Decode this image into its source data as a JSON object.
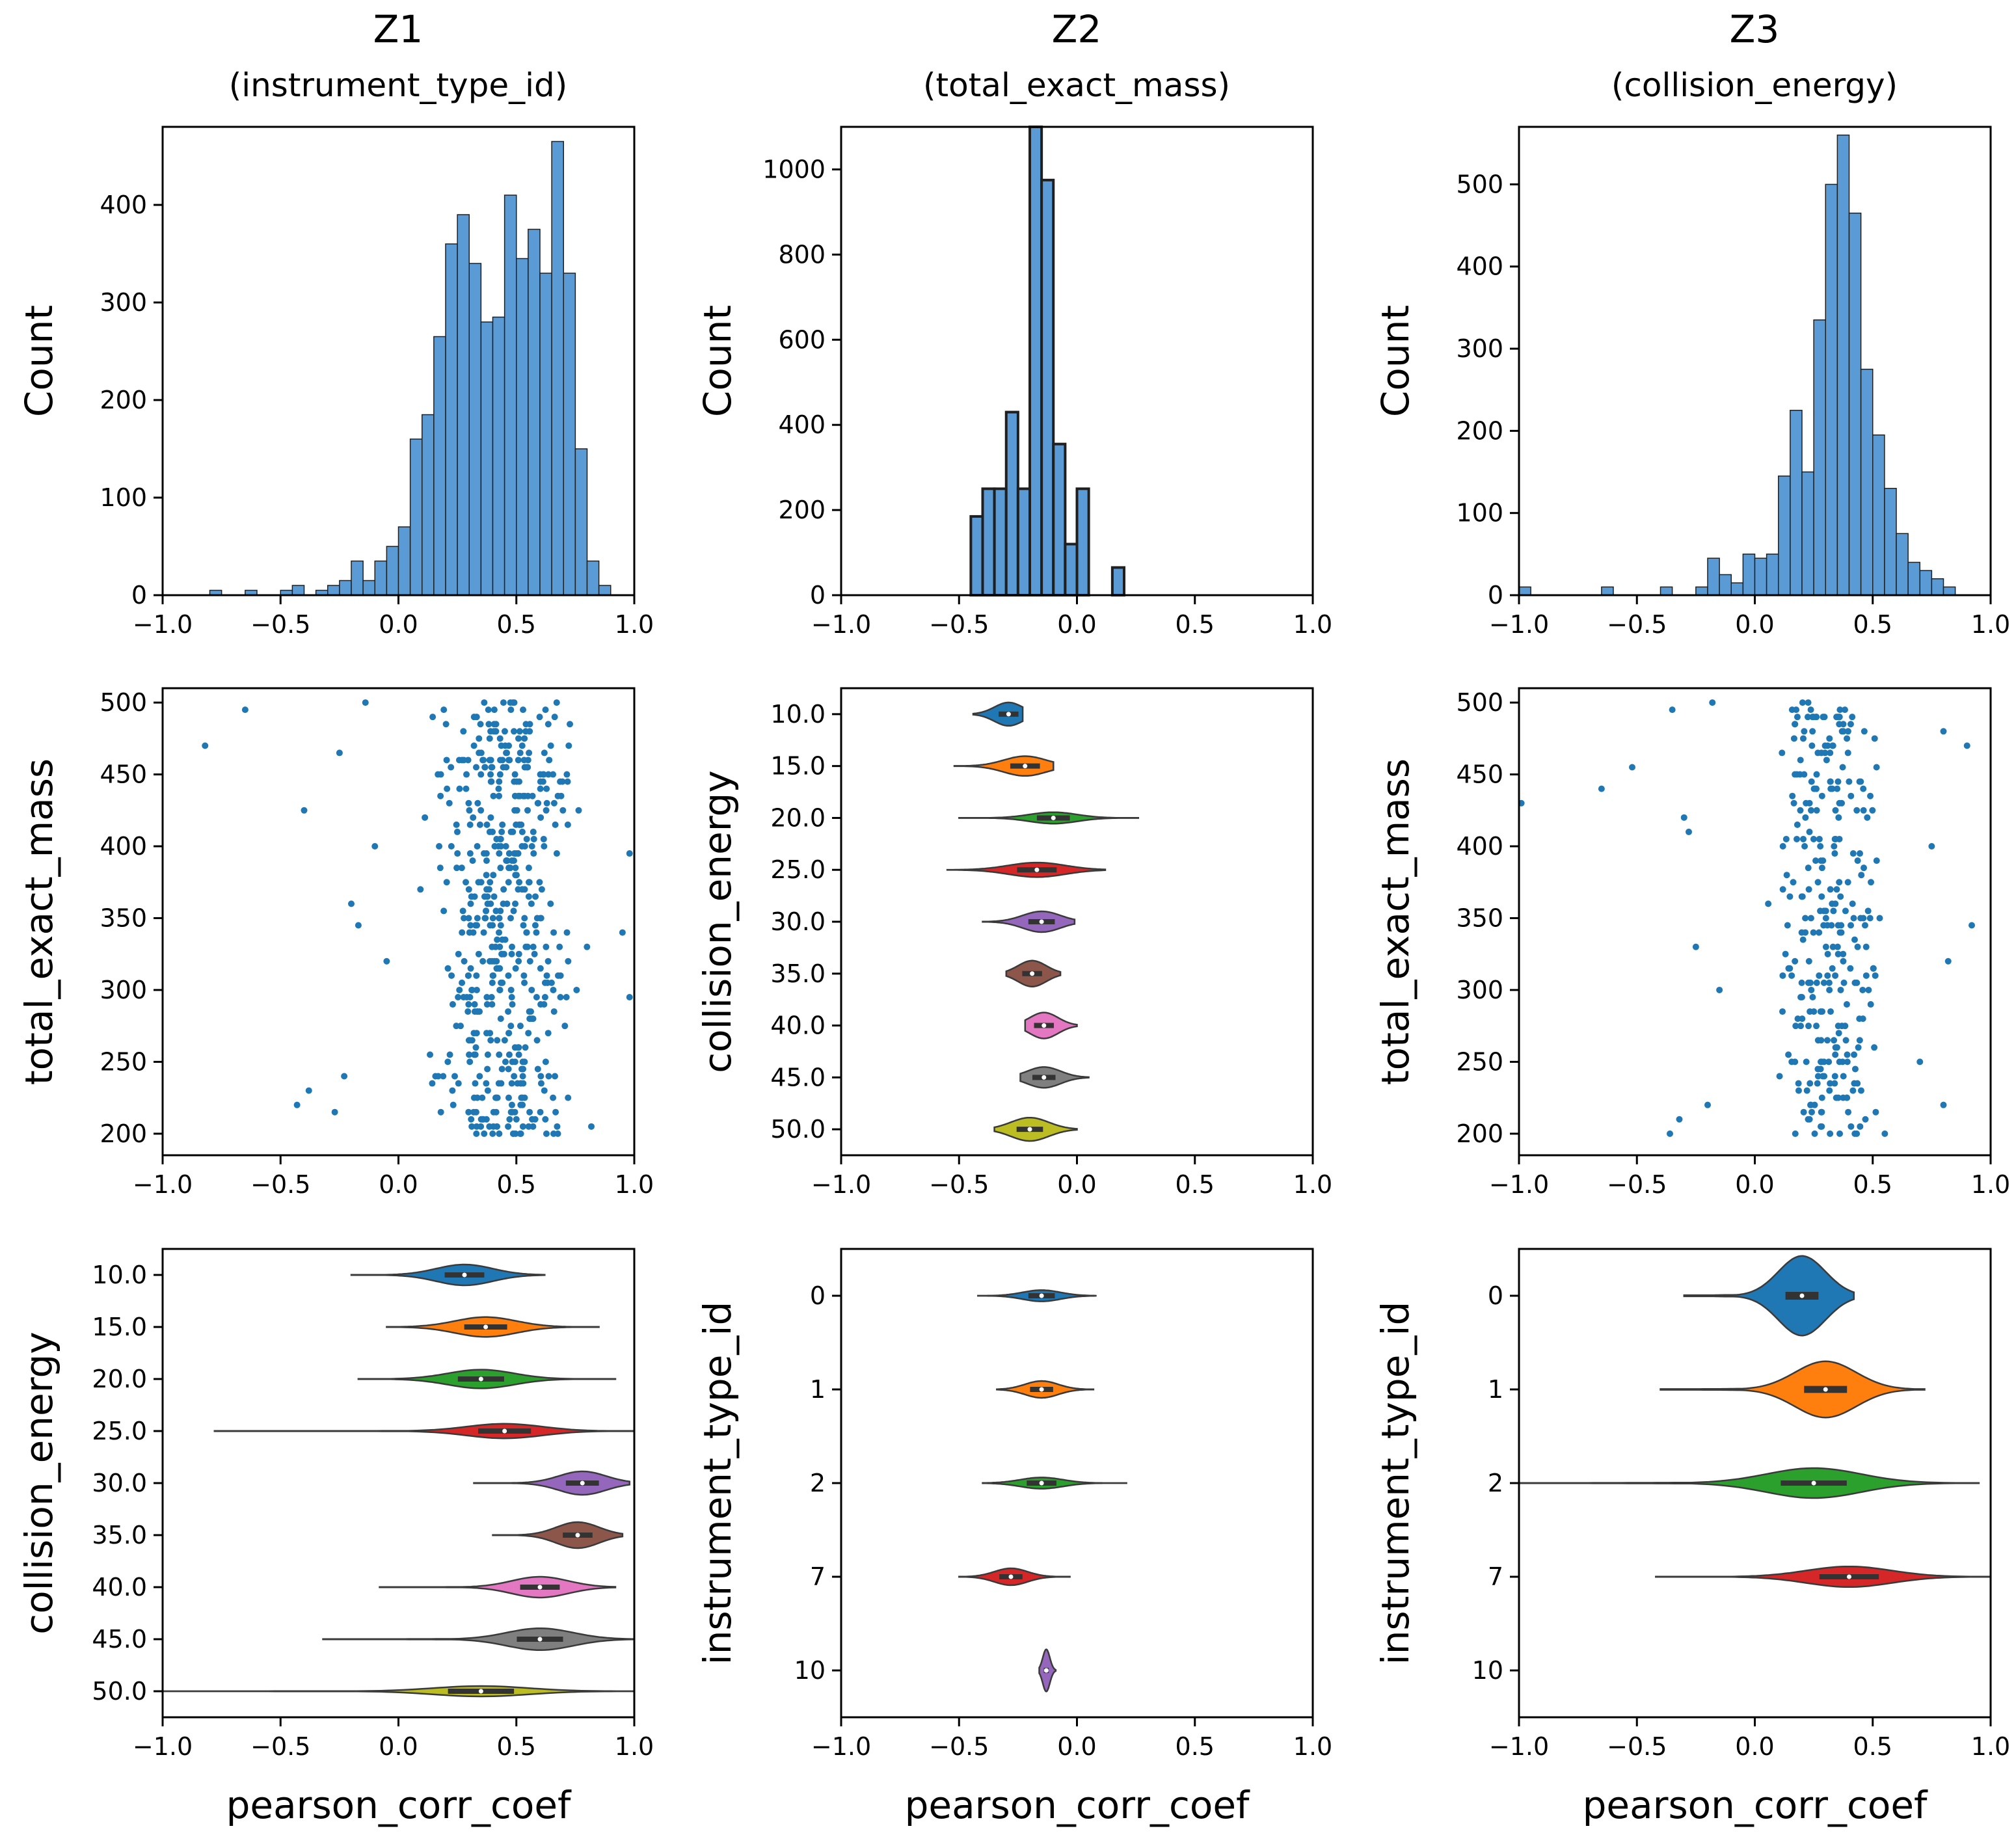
{
  "colors": {
    "bar": "#5b9bd5",
    "bar_stroke": "#1f1f1f",
    "point": "#1f77b4",
    "palette": [
      "#1f77b4",
      "#ff7f0e",
      "#2ca02c",
      "#d62728",
      "#9467bd",
      "#8c564b",
      "#e377c2",
      "#7f7f7f",
      "#bcbd22"
    ]
  },
  "columns": [
    {
      "title": "Z1",
      "subtitle": "(instrument_type_id)"
    },
    {
      "title": "Z2",
      "subtitle": "(total_exact_mass)"
    },
    {
      "title": "Z3",
      "subtitle": "(collision_energy)"
    }
  ],
  "chart_data": [
    {
      "id": "z1-hist",
      "type": "bar",
      "title": "Z1 (instrument_type_id)",
      "xlabel": "",
      "ylabel": "Count",
      "xlim": [
        -1.0,
        1.0
      ],
      "ylim": [
        0,
        480
      ],
      "xticks": [
        "−1.0",
        "−0.5",
        "0.0",
        "0.5",
        "1.0"
      ],
      "yticks": [
        {
          "v": 0,
          "label": "0"
        },
        {
          "v": 100,
          "label": "100"
        },
        {
          "v": 200,
          "label": "200"
        },
        {
          "v": 300,
          "label": "300"
        },
        {
          "v": 400,
          "label": "400"
        }
      ],
      "bin_start": -1.0,
      "bin_width": 0.05,
      "values": [
        0,
        0,
        0,
        0,
        5,
        0,
        0,
        5,
        0,
        0,
        5,
        10,
        0,
        5,
        10,
        15,
        35,
        15,
        35,
        50,
        70,
        160,
        185,
        265,
        360,
        390,
        340,
        280,
        285,
        410,
        345,
        375,
        330,
        465,
        330,
        150,
        35,
        10,
        0,
        0
      ]
    },
    {
      "id": "z2-hist",
      "type": "bar",
      "title": "Z2 (total_exact_mass)",
      "xlabel": "",
      "ylabel": "Count",
      "xlim": [
        -1.0,
        1.0
      ],
      "ylim": [
        0,
        1100
      ],
      "xticks": [
        "−1.0",
        "−0.5",
        "0.0",
        "0.5",
        "1.0"
      ],
      "yticks": [
        {
          "v": 0,
          "label": "0"
        },
        {
          "v": 200,
          "label": "200"
        },
        {
          "v": 400,
          "label": "400"
        },
        {
          "v": 600,
          "label": "600"
        },
        {
          "v": 800,
          "label": "800"
        },
        {
          "v": 1000,
          "label": "1000"
        }
      ],
      "bin_start": -0.45,
      "bin_width": 0.05,
      "values": [
        185,
        250,
        250,
        430,
        250,
        1100,
        975,
        355,
        120,
        250,
        0,
        0,
        65
      ]
    },
    {
      "id": "z3-hist",
      "type": "bar",
      "title": "Z3 (collision_energy)",
      "xlabel": "",
      "ylabel": "Count",
      "xlim": [
        -1.0,
        1.0
      ],
      "ylim": [
        0,
        570
      ],
      "xticks": [
        "−1.0",
        "−0.5",
        "0.0",
        "0.5",
        "1.0"
      ],
      "yticks": [
        {
          "v": 0,
          "label": "0"
        },
        {
          "v": 100,
          "label": "100"
        },
        {
          "v": 200,
          "label": "200"
        },
        {
          "v": 300,
          "label": "300"
        },
        {
          "v": 400,
          "label": "400"
        },
        {
          "v": 500,
          "label": "500"
        }
      ],
      "bin_start": -1.0,
      "bin_width": 0.05,
      "values": [
        10,
        0,
        0,
        0,
        0,
        0,
        0,
        10,
        0,
        0,
        0,
        0,
        10,
        0,
        0,
        10,
        45,
        25,
        15,
        50,
        45,
        50,
        145,
        225,
        150,
        335,
        500,
        560,
        465,
        275,
        195,
        130,
        75,
        40,
        30,
        20,
        10,
        0,
        0,
        0
      ]
    },
    {
      "id": "z1-scatter",
      "type": "scatter",
      "xlabel": "",
      "ylabel": "total_exact_mass",
      "xlim": [
        -1.0,
        1.0
      ],
      "ylim": [
        185,
        510
      ],
      "xticks": [
        "−1.0",
        "−0.5",
        "0.0",
        "0.5",
        "1.0"
      ],
      "yticks": [
        {
          "v": 200,
          "label": "200"
        },
        {
          "v": 250,
          "label": "250"
        },
        {
          "v": 300,
          "label": "300"
        },
        {
          "v": 350,
          "label": "350"
        },
        {
          "v": 400,
          "label": "400"
        },
        {
          "v": 450,
          "label": "450"
        },
        {
          "v": 500,
          "label": "500"
        }
      ],
      "y_range": [
        200,
        500
      ],
      "dense_x_range": [
        0.05,
        0.85
      ],
      "outliers": [
        [
          -0.82,
          470
        ],
        [
          -0.65,
          495
        ],
        [
          -0.4,
          425
        ],
        [
          -0.43,
          220
        ],
        [
          -0.38,
          230
        ],
        [
          -0.27,
          215
        ],
        [
          -0.23,
          240
        ],
        [
          -0.2,
          360
        ],
        [
          -0.17,
          345
        ],
        [
          -0.1,
          400
        ],
        [
          -0.05,
          320
        ],
        [
          0.98,
          395
        ],
        [
          0.98,
          295
        ],
        [
          0.95,
          340
        ],
        [
          -0.25,
          465
        ],
        [
          -0.14,
          500
        ]
      ]
    },
    {
      "id": "z2-violin",
      "type": "violin",
      "xlabel": "",
      "ylabel": "collision_energy",
      "xlim": [
        -1.0,
        1.0
      ],
      "xticks": [
        "−1.0",
        "−0.5",
        "0.0",
        "0.5",
        "1.0"
      ],
      "categories": [
        "10.0",
        "15.0",
        "20.0",
        "25.0",
        "30.0",
        "35.0",
        "40.0",
        "45.0",
        "50.0"
      ],
      "median": [
        -0.29,
        -0.22,
        -0.1,
        -0.17,
        -0.15,
        -0.19,
        -0.14,
        -0.14,
        -0.2
      ],
      "range": [
        [
          -0.44,
          -0.23
        ],
        [
          -0.52,
          -0.1
        ],
        [
          -0.5,
          0.26
        ],
        [
          -0.55,
          0.12
        ],
        [
          -0.4,
          -0.01
        ],
        [
          -0.3,
          -0.07
        ],
        [
          -0.22,
          0.0
        ],
        [
          -0.24,
          0.05
        ],
        [
          -0.35,
          0.0
        ]
      ],
      "bw": [
        0.06,
        0.09,
        0.1,
        0.12,
        0.08,
        0.06,
        0.06,
        0.07,
        0.08
      ],
      "maxw": [
        0.45,
        0.38,
        0.22,
        0.28,
        0.4,
        0.5,
        0.5,
        0.4,
        0.45
      ]
    },
    {
      "id": "z3-scatter",
      "type": "scatter",
      "xlabel": "",
      "ylabel": "total_exact_mass",
      "xlim": [
        -1.0,
        1.0
      ],
      "ylim": [
        185,
        510
      ],
      "xticks": [
        "−1.0",
        "−0.5",
        "0.0",
        "0.5",
        "1.0"
      ],
      "yticks": [
        {
          "v": 200,
          "label": "200"
        },
        {
          "v": 250,
          "label": "250"
        },
        {
          "v": 300,
          "label": "300"
        },
        {
          "v": 350,
          "label": "350"
        },
        {
          "v": 400,
          "label": "400"
        },
        {
          "v": 450,
          "label": "450"
        },
        {
          "v": 500,
          "label": "500"
        }
      ],
      "y_range": [
        200,
        500
      ],
      "dense_x_range": [
        0.0,
        0.6
      ],
      "outliers": [
        [
          -0.99,
          430
        ],
        [
          -0.65,
          440
        ],
        [
          -0.52,
          455
        ],
        [
          -0.35,
          495
        ],
        [
          -0.18,
          500
        ],
        [
          -0.3,
          420
        ],
        [
          -0.28,
          410
        ],
        [
          -0.25,
          330
        ],
        [
          -0.2,
          220
        ],
        [
          -0.36,
          200
        ],
        [
          -0.32,
          210
        ],
        [
          -0.15,
          300
        ],
        [
          0.8,
          480
        ],
        [
          0.9,
          470
        ],
        [
          0.75,
          400
        ],
        [
          0.82,
          320
        ],
        [
          0.92,
          345
        ],
        [
          0.8,
          220
        ],
        [
          0.7,
          250
        ]
      ]
    },
    {
      "id": "z1-violin",
      "type": "violin",
      "xlabel": "pearson_corr_coef",
      "ylabel": "collision_energy",
      "xlim": [
        -1.0,
        1.0
      ],
      "xticks": [
        "−1.0",
        "−0.5",
        "0.0",
        "0.5",
        "1.0"
      ],
      "categories": [
        "10.0",
        "15.0",
        "20.0",
        "25.0",
        "30.0",
        "35.0",
        "40.0",
        "45.0",
        "50.0"
      ],
      "median": [
        0.28,
        0.37,
        0.35,
        0.45,
        0.78,
        0.76,
        0.6,
        0.6,
        0.35
      ],
      "range": [
        [
          -0.2,
          0.62
        ],
        [
          -0.05,
          0.85
        ],
        [
          -0.17,
          0.92
        ],
        [
          -0.78,
          1.0
        ],
        [
          0.32,
          0.98
        ],
        [
          0.4,
          0.95
        ],
        [
          -0.08,
          0.92
        ],
        [
          -0.32,
          1.0
        ],
        [
          -1.0,
          1.0
        ]
      ],
      "bw": [
        0.12,
        0.13,
        0.14,
        0.16,
        0.1,
        0.09,
        0.12,
        0.14,
        0.2
      ],
      "maxw": [
        0.4,
        0.38,
        0.36,
        0.28,
        0.45,
        0.5,
        0.4,
        0.42,
        0.2
      ]
    },
    {
      "id": "z2-violin-inst",
      "type": "violin",
      "xlabel": "pearson_corr_coef",
      "ylabel": "instrument_type_id",
      "xlim": [
        -1.0,
        1.0
      ],
      "xticks": [
        "−1.0",
        "−0.5",
        "0.0",
        "0.5",
        "1.0"
      ],
      "categories": [
        "0",
        "1",
        "2",
        "7",
        "10"
      ],
      "median": [
        -0.15,
        -0.15,
        -0.15,
        -0.28,
        -0.13
      ],
      "range": [
        [
          -0.42,
          0.08
        ],
        [
          -0.34,
          0.07
        ],
        [
          -0.4,
          0.21
        ],
        [
          -0.5,
          -0.03
        ],
        [
          -0.16,
          -0.09
        ]
      ],
      "bw": [
        0.08,
        0.07,
        0.09,
        0.07,
        0.015
      ],
      "maxw": [
        0.12,
        0.18,
        0.12,
        0.18,
        0.45
      ]
    },
    {
      "id": "z3-violin-inst",
      "type": "violin",
      "xlabel": "pearson_corr_coef",
      "ylabel": "instrument_type_id",
      "xlim": [
        -1.0,
        1.0
      ],
      "xticks": [
        "−1.0",
        "−0.5",
        "0.0",
        "0.5",
        "1.0"
      ],
      "categories": [
        "0",
        "1",
        "2",
        "7",
        "10"
      ],
      "median": [
        0.2,
        0.3,
        0.25,
        0.4,
        null
      ],
      "range": [
        [
          -0.3,
          0.42
        ],
        [
          -0.4,
          0.72
        ],
        [
          -1.0,
          0.95
        ],
        [
          -0.42,
          1.0
        ],
        null
      ],
      "bw": [
        0.1,
        0.13,
        0.2,
        0.18,
        0
      ],
      "maxw": [
        0.85,
        0.6,
        0.32,
        0.22,
        0
      ]
    }
  ]
}
